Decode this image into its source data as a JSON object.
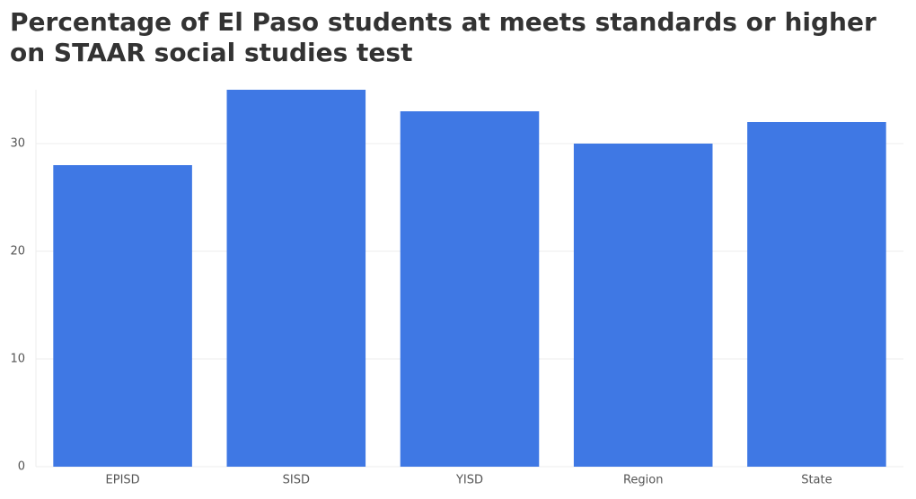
{
  "chart_data": {
    "type": "bar",
    "title": "Percentage of El Paso students at meets standards or higher on STAAR social studies test",
    "categories": [
      "EPISD",
      "SISD",
      "YISD",
      "Region",
      "State"
    ],
    "values": [
      28,
      35,
      33,
      30,
      32
    ],
    "color": "#3f78e4",
    "ylim": [
      0,
      35
    ],
    "yticks": [
      0,
      10,
      20,
      30
    ],
    "grid": true
  }
}
